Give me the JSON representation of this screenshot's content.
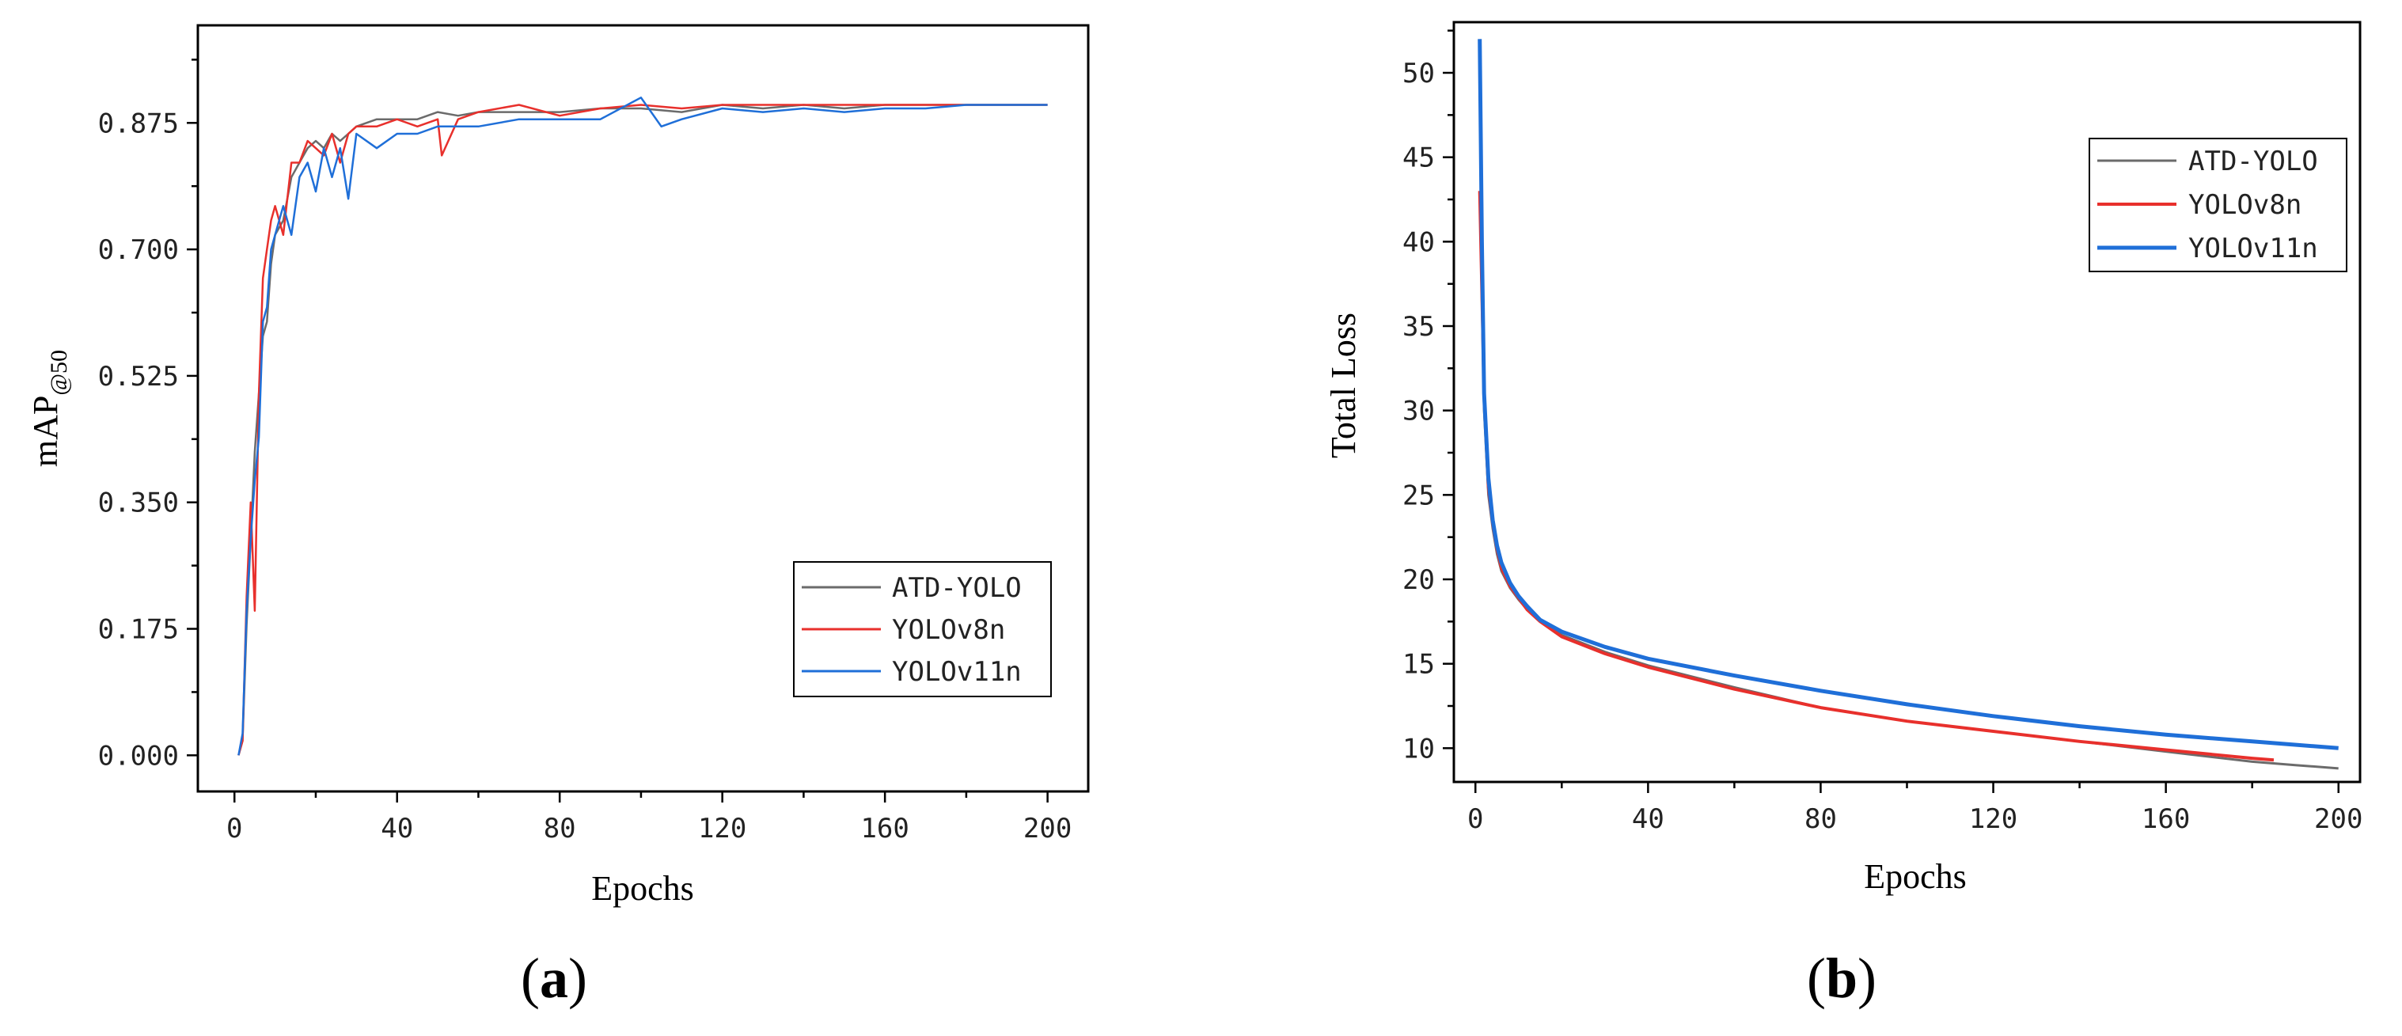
{
  "chart_data": [
    {
      "type": "line",
      "panel_label": "a",
      "xlabel": "Epochs",
      "ylabel_main": "mAP",
      "ylabel_sub": "@50",
      "xlim": [
        -9,
        210
      ],
      "ylim": [
        -0.05,
        1.01
      ],
      "xticks": [
        0,
        40,
        80,
        120,
        160,
        200
      ],
      "xtick_labels": [
        "0",
        "40",
        "80",
        "120",
        "160",
        "200"
      ],
      "yticks": [
        0,
        0.175,
        0.35,
        0.525,
        0.7,
        0.875
      ],
      "ytick_labels": [
        "0.000",
        "0.175",
        "0.350",
        "0.525",
        "0.700",
        "0.875"
      ],
      "legend_position": "bottom-right",
      "series": [
        {
          "name": "ATD-YOLO",
          "color": "#6b6b6b",
          "x": [
            1,
            2,
            3,
            4,
            5,
            6,
            7,
            8,
            9,
            10,
            12,
            14,
            16,
            18,
            20,
            22,
            24,
            26,
            28,
            30,
            35,
            40,
            45,
            50,
            55,
            60,
            70,
            80,
            90,
            100,
            110,
            120,
            130,
            140,
            150,
            160,
            170,
            180,
            190,
            200
          ],
          "values": [
            0.0,
            0.02,
            0.18,
            0.3,
            0.42,
            0.5,
            0.58,
            0.6,
            0.68,
            0.72,
            0.74,
            0.8,
            0.82,
            0.84,
            0.85,
            0.84,
            0.86,
            0.85,
            0.86,
            0.87,
            0.88,
            0.88,
            0.88,
            0.89,
            0.885,
            0.89,
            0.89,
            0.89,
            0.895,
            0.895,
            0.89,
            0.9,
            0.895,
            0.9,
            0.895,
            0.9,
            0.9,
            0.9,
            0.9,
            0.9
          ]
        },
        {
          "name": "YOLOv8n",
          "color": "#e8302c",
          "x": [
            1,
            2,
            3,
            4,
            5,
            6,
            7,
            8,
            9,
            10,
            12,
            14,
            16,
            18,
            20,
            22,
            24,
            26,
            28,
            30,
            35,
            40,
            45,
            50,
            51,
            55,
            60,
            70,
            80,
            90,
            100,
            110,
            120,
            130,
            140,
            150,
            160,
            170,
            180,
            190,
            200
          ],
          "values": [
            0.0,
            0.02,
            0.22,
            0.35,
            0.2,
            0.5,
            0.66,
            0.7,
            0.74,
            0.76,
            0.72,
            0.82,
            0.82,
            0.85,
            0.84,
            0.83,
            0.86,
            0.82,
            0.86,
            0.87,
            0.87,
            0.88,
            0.87,
            0.88,
            0.83,
            0.88,
            0.89,
            0.9,
            0.885,
            0.895,
            0.9,
            0.895,
            0.9,
            0.9,
            0.9,
            0.9,
            0.9,
            0.9,
            0.9,
            0.9,
            0.9
          ]
        },
        {
          "name": "YOLOv11n",
          "color": "#1f6fd8",
          "x": [
            1,
            2,
            3,
            4,
            5,
            6,
            7,
            8,
            9,
            10,
            12,
            14,
            16,
            18,
            20,
            22,
            24,
            26,
            28,
            30,
            35,
            40,
            45,
            50,
            55,
            60,
            70,
            80,
            90,
            100,
            105,
            110,
            120,
            130,
            140,
            150,
            160,
            170,
            180,
            190,
            200
          ],
          "values": [
            0.0,
            0.03,
            0.2,
            0.3,
            0.38,
            0.44,
            0.6,
            0.62,
            0.7,
            0.72,
            0.76,
            0.72,
            0.8,
            0.82,
            0.78,
            0.84,
            0.8,
            0.84,
            0.77,
            0.86,
            0.84,
            0.86,
            0.86,
            0.87,
            0.87,
            0.87,
            0.88,
            0.88,
            0.88,
            0.91,
            0.87,
            0.88,
            0.895,
            0.89,
            0.895,
            0.89,
            0.895,
            0.895,
            0.9,
            0.9,
            0.9
          ]
        }
      ]
    },
    {
      "type": "line",
      "panel_label": "b",
      "xlabel": "Epochs",
      "ylabel": "Total Loss",
      "xlim": [
        -5,
        205
      ],
      "ylim": [
        8,
        53
      ],
      "xticks": [
        0,
        40,
        80,
        120,
        160,
        200
      ],
      "xtick_labels": [
        "0",
        "40",
        "80",
        "120",
        "160",
        "200"
      ],
      "yticks": [
        10,
        15,
        20,
        25,
        30,
        35,
        40,
        45,
        50
      ],
      "ytick_labels": [
        "10",
        "15",
        "20",
        "25",
        "30",
        "35",
        "40",
        "45",
        "50"
      ],
      "legend_position": "top-right",
      "series": [
        {
          "name": "ATD-YOLO",
          "color": "#6b6b6b",
          "x": [
            1,
            2,
            3,
            4,
            5,
            6,
            8,
            10,
            12,
            15,
            20,
            30,
            40,
            60,
            80,
            100,
            120,
            140,
            160,
            180,
            190,
            200
          ],
          "values": [
            43,
            30,
            25,
            23,
            21.5,
            20.5,
            19.5,
            18.8,
            18.2,
            17.5,
            16.7,
            15.7,
            14.9,
            13.6,
            12.4,
            11.6,
            11.0,
            10.4,
            9.8,
            9.2,
            9.0,
            8.8
          ]
        },
        {
          "name": "YOLOv8n",
          "color": "#e8302c",
          "x": [
            1,
            2,
            3,
            4,
            5,
            6,
            8,
            10,
            12,
            15,
            20,
            30,
            40,
            60,
            80,
            100,
            120,
            140,
            160,
            180,
            185
          ],
          "values": [
            43,
            31,
            25.5,
            23.3,
            21.8,
            20.7,
            19.6,
            18.9,
            18.2,
            17.5,
            16.6,
            15.6,
            14.8,
            13.5,
            12.4,
            11.6,
            11.0,
            10.4,
            9.9,
            9.4,
            9.3
          ]
        },
        {
          "name": "YOLOv11n",
          "color": "#1f6fd8",
          "x": [
            1,
            1.5,
            2,
            3,
            4,
            5,
            6,
            8,
            10,
            12,
            15,
            20,
            30,
            40,
            60,
            80,
            100,
            120,
            140,
            160,
            180,
            200
          ],
          "values": [
            52,
            40,
            31,
            26,
            23.5,
            22,
            21,
            19.8,
            19.0,
            18.4,
            17.6,
            16.9,
            16.0,
            15.3,
            14.3,
            13.4,
            12.6,
            11.9,
            11.3,
            10.8,
            10.4,
            10.0
          ]
        }
      ]
    }
  ]
}
